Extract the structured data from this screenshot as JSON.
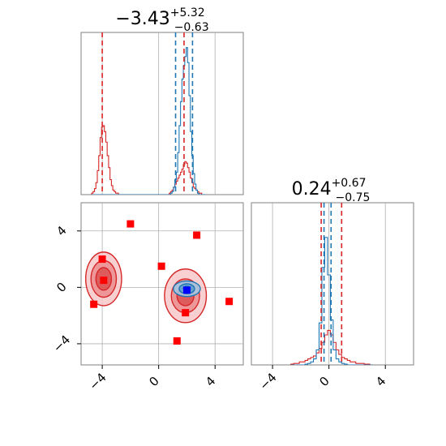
{
  "chart_data": {
    "type": "corner",
    "titles": [
      {
        "panel": "x1",
        "value": "−3.43",
        "upper": "+5.32",
        "lower": "−0.63"
      },
      {
        "panel": "x2",
        "value": "0.24",
        "upper": "+0.67",
        "lower": "−0.75"
      }
    ],
    "xlim": [
      -5.5,
      6.0
    ],
    "ylim": [
      -5.5,
      6.0
    ],
    "ticks": [
      -4,
      0,
      4
    ],
    "tick_labels": [
      "−4",
      "0",
      "4"
    ],
    "grid": true,
    "series": [
      {
        "color": "#1f77b4"
      },
      {
        "color": "#d62728"
      }
    ],
    "hist_x1": {
      "bins_center": [
        -4.7,
        -4.6,
        -4.5,
        -4.4,
        -4.3,
        -4.2,
        -4.1,
        -4.0,
        -3.9,
        -3.8,
        -3.7,
        -3.6,
        -3.5,
        -3.4,
        -3.3,
        -3.2,
        -3.1,
        -3.0,
        -2.9,
        -2.8,
        -2.7,
        -2.6,
        0.8,
        0.9,
        1.0,
        1.1,
        1.2,
        1.3,
        1.4,
        1.5,
        1.6,
        1.7,
        1.8,
        1.9,
        2.0,
        2.1,
        2.2,
        2.3,
        2.4,
        2.5,
        2.6,
        2.7,
        2.8,
        2.9,
        3.0,
        3.1,
        3.2,
        3.3
      ],
      "blue": [
        0,
        0,
        0,
        0,
        0,
        0,
        0,
        0,
        0,
        0,
        0,
        0,
        0,
        0,
        0,
        0,
        0,
        0,
        0,
        0,
        0,
        0,
        0,
        0.01,
        0.02,
        0.05,
        0.1,
        0.15,
        0.28,
        0.46,
        0.62,
        0.77,
        0.86,
        0.92,
        0.98,
        0.88,
        0.66,
        0.42,
        0.26,
        0.14,
        0.07,
        0.03,
        0.01,
        0,
        0,
        0,
        0,
        0
      ],
      "red": [
        0.01,
        0.02,
        0.04,
        0.08,
        0.16,
        0.26,
        0.38,
        0.45,
        0.46,
        0.42,
        0.35,
        0.26,
        0.18,
        0.1,
        0.06,
        0.03,
        0.02,
        0.01,
        0.01,
        0,
        0,
        0,
        0.01,
        0.02,
        0.03,
        0.05,
        0.07,
        0.09,
        0.11,
        0.13,
        0.15,
        0.17,
        0.2,
        0.22,
        0.21,
        0.18,
        0.15,
        0.11,
        0.08,
        0.05,
        0.04,
        0.03,
        0.02,
        0.01,
        0.01,
        0,
        0,
        0
      ],
      "vlines": [
        {
          "color": "#d62728",
          "x": -4.0
        },
        {
          "color": "#1f77b4",
          "x": 1.2
        },
        {
          "color": "#d62728",
          "x": 1.8
        },
        {
          "color": "#1f77b4",
          "x": 2.4
        }
      ]
    },
    "hist_x2": {
      "bins_center": [
        -2.6,
        -2.4,
        -2.2,
        -2.0,
        -1.8,
        -1.6,
        -1.4,
        -1.2,
        -1.0,
        -0.8,
        -0.6,
        -0.4,
        -0.2,
        0.0,
        0.2,
        0.4,
        0.6,
        0.8,
        1.0,
        1.2,
        1.4,
        1.6,
        1.8,
        2.0,
        2.2,
        2.4,
        2.6,
        2.8,
        3.0
      ],
      "blue": [
        0,
        0,
        0,
        0,
        0,
        0.005,
        0.01,
        0.02,
        0.04,
        0.1,
        0.28,
        0.65,
        0.85,
        0.6,
        0.3,
        0.1,
        0.04,
        0.02,
        0.01,
        0.005,
        0,
        0,
        0,
        0,
        0,
        0,
        0,
        0,
        0
      ],
      "red": [
        0.005,
        0.01,
        0.01,
        0.02,
        0.02,
        0.03,
        0.04,
        0.05,
        0.06,
        0.08,
        0.11,
        0.15,
        0.2,
        0.23,
        0.2,
        0.15,
        0.1,
        0.07,
        0.05,
        0.04,
        0.03,
        0.02,
        0.02,
        0.01,
        0.01,
        0.01,
        0.005,
        0.005,
        0
      ],
      "vlines": [
        {
          "color": "#d62728",
          "x": -0.55
        },
        {
          "color": "#1f77b4",
          "x": -0.35
        },
        {
          "color": "#1f77b4",
          "x": 0.15
        },
        {
          "color": "#d62728",
          "x": 0.9
        }
      ]
    },
    "scatter_points": [
      {
        "color": "#ff0000",
        "x": -4.6,
        "y": -1.2
      },
      {
        "color": "#ff0000",
        "x": -4.0,
        "y": 2.0
      },
      {
        "color": "#ff0000",
        "x": -3.9,
        "y": 0.5
      },
      {
        "color": "#ff0000",
        "x": -2.0,
        "y": 4.5
      },
      {
        "color": "#ff0000",
        "x": 0.2,
        "y": 1.5
      },
      {
        "color": "#ff0000",
        "x": 1.3,
        "y": -3.8
      },
      {
        "color": "#ff0000",
        "x": 1.9,
        "y": -1.8
      },
      {
        "color": "#ff0000",
        "x": 2.7,
        "y": 3.7
      },
      {
        "color": "#ff0000",
        "x": 5.0,
        "y": -1.0
      },
      {
        "color": "#0000ff",
        "x": 2.0,
        "y": -0.2
      }
    ],
    "contours": [
      {
        "color": "#d62728",
        "cx": -3.9,
        "cy": 0.6,
        "rx": [
          1.2,
          0.9,
          0.55
        ],
        "ry": [
          1.9,
          1.3,
          0.8
        ]
      },
      {
        "color": "#d62728",
        "cx": 1.9,
        "cy": -0.6,
        "rx": [
          1.4,
          1.0,
          0.6
        ],
        "ry": [
          1.9,
          1.2,
          0.7
        ]
      },
      {
        "color": "#1f77b4",
        "cx": 2.0,
        "cy": -0.1,
        "rx": [
          0.9,
          0.55,
          0.25
        ],
        "ry": [
          0.55,
          0.35,
          0.18
        ]
      }
    ]
  }
}
